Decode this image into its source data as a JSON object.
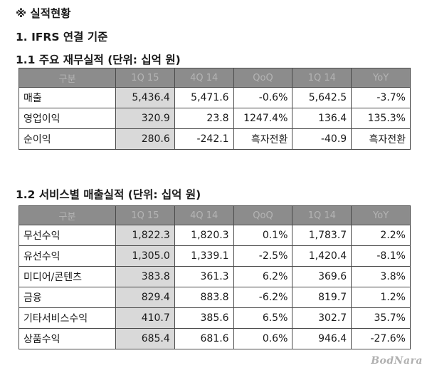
{
  "headings": {
    "main": "※ 실적현황",
    "sub": "1. IFRS 연결 기준",
    "table1": "1.1 주요 재무실적 (단위: 십억 원)",
    "table2": "1.2 서비스별 매출실적 (단위: 십억 원)"
  },
  "table1": {
    "headers": [
      "구분",
      "1Q 15",
      "4Q 14",
      "QoQ",
      "1Q 14",
      "YoY"
    ],
    "rows": [
      [
        "매출",
        "5,436.4",
        "5,471.6",
        "-0.6%",
        "5,642.5",
        "-3.7%"
      ],
      [
        "영업이익",
        "320.9",
        "23.8",
        "1247.4%",
        "136.4",
        "135.3%"
      ],
      [
        "순이익",
        "280.6",
        "-242.1",
        "흑자전환",
        "-40.9",
        "흑자전환"
      ]
    ]
  },
  "table2": {
    "headers": [
      "구분",
      "1Q 15",
      "4Q 14",
      "QoQ",
      "1Q 14",
      "YoY"
    ],
    "rows": [
      [
        "무선수익",
        "1,822.3",
        "1,820.3",
        "0.1%",
        "1,783.7",
        "2.2%"
      ],
      [
        "유선수익",
        "1,305.0",
        "1,339.1",
        "-2.5%",
        "1,420.4",
        "-8.1%"
      ],
      [
        "미디어/콘텐츠",
        "383.8",
        "361.3",
        "6.2%",
        "369.6",
        "3.8%"
      ],
      [
        "금융",
        "829.4",
        "883.8",
        "-6.2%",
        "819.7",
        "1.2%"
      ],
      [
        "기타서비스수익",
        "410.7",
        "385.6",
        "6.5%",
        "302.7",
        "35.7%"
      ],
      [
        "상품수익",
        "685.4",
        "681.6",
        "0.6%",
        "946.4",
        "-27.6%"
      ]
    ]
  },
  "watermark": "BodNara",
  "colors": {
    "header_bg": "#8c8c8c",
    "header_text": "#b4b4b4",
    "highlight_col": "#d9d9d9",
    "border": "#4a4a4a"
  }
}
